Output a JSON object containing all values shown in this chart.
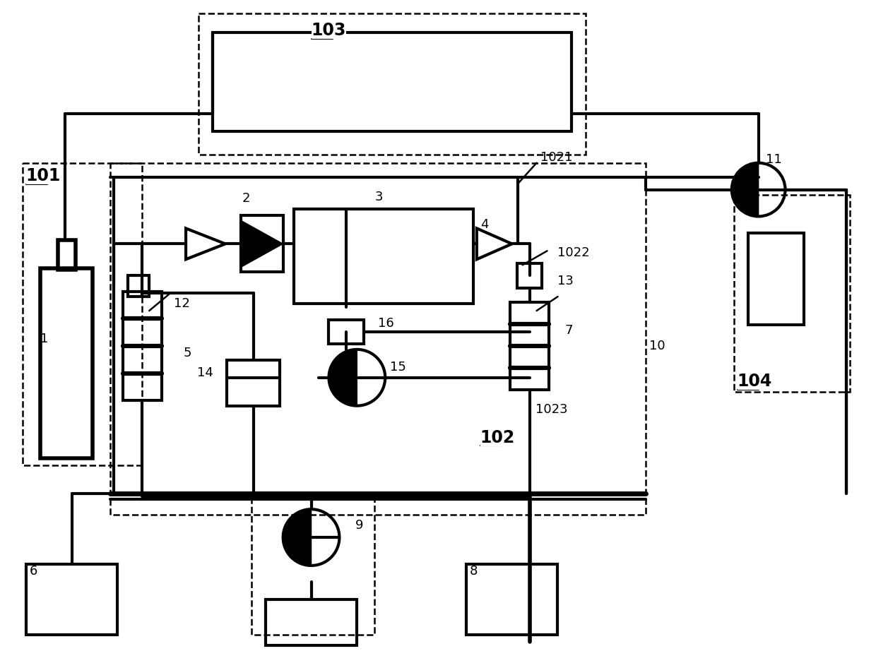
{
  "bg_color": "#ffffff",
  "lc": "#000000",
  "lw": 2.0,
  "dlw": 1.8,
  "fig_w": 12.4,
  "fig_h": 9.22
}
